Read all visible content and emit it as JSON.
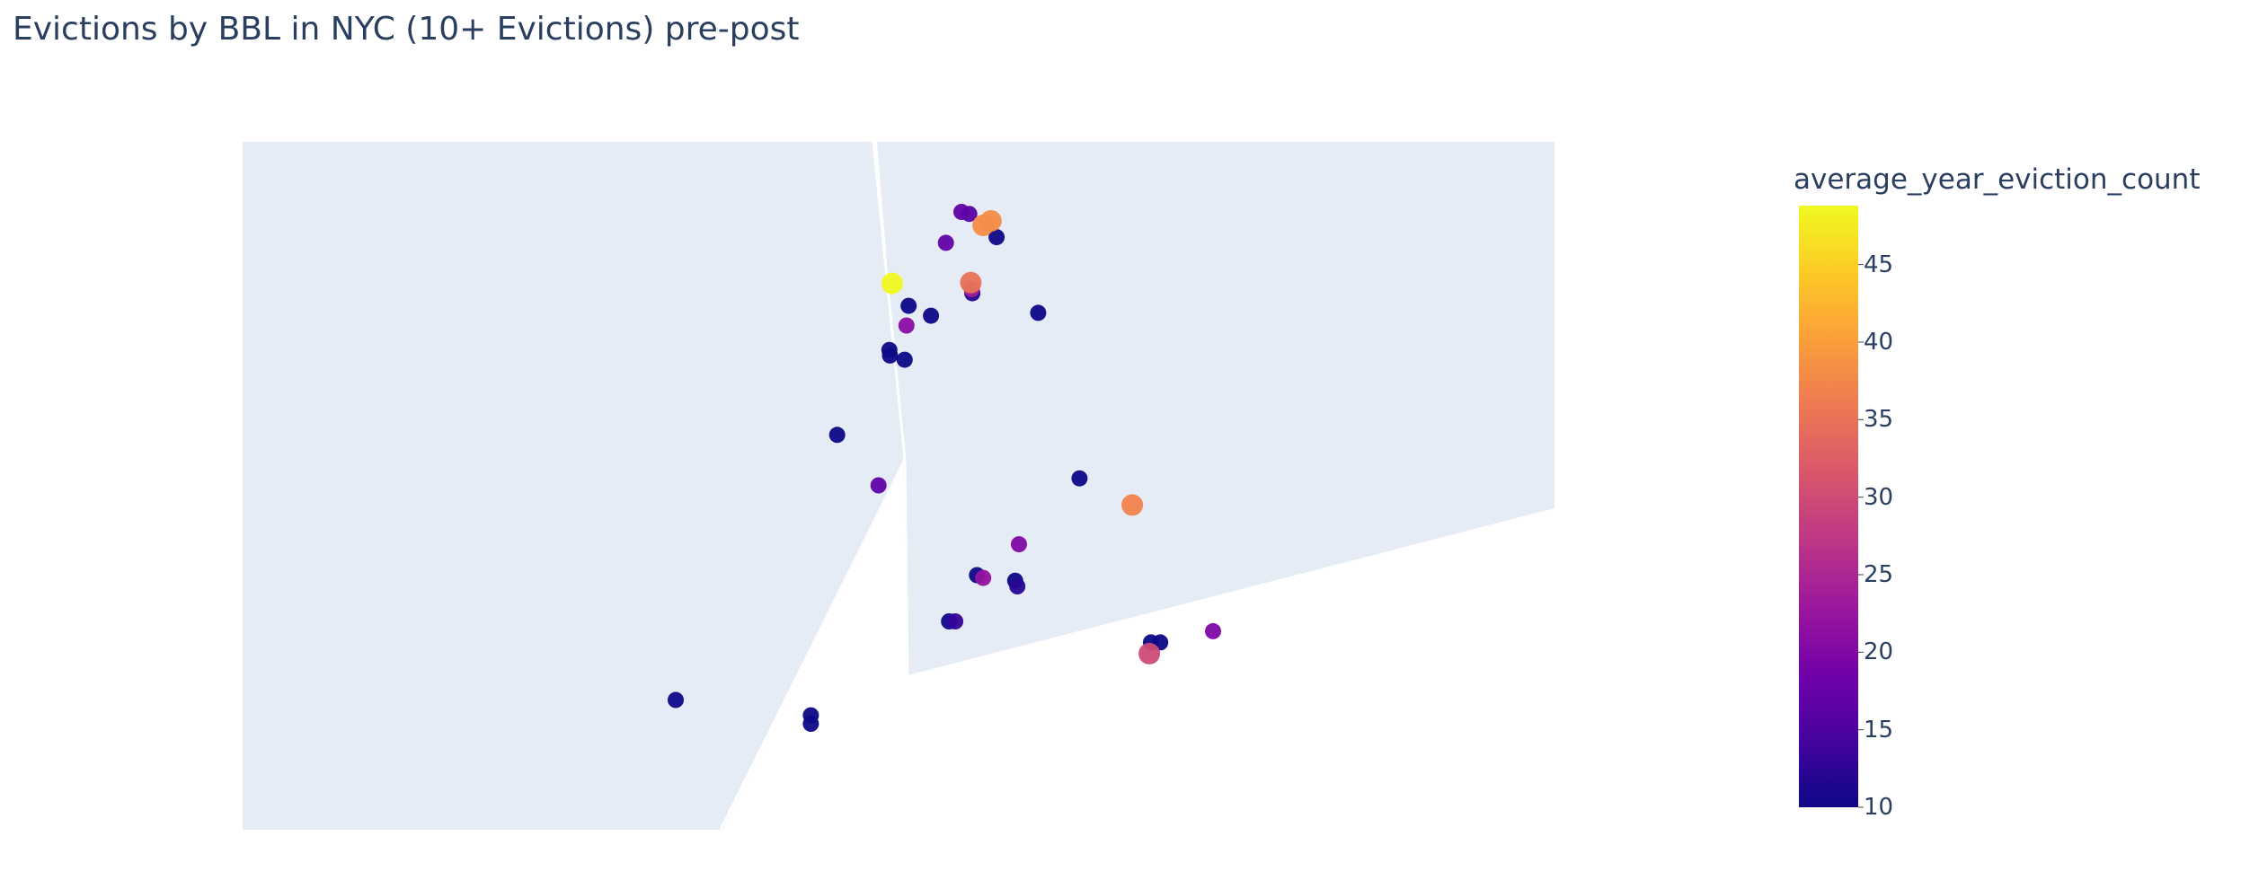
{
  "title": "Evictions by BBL in NYC (10+ Evictions) pre-post",
  "colorbar": {
    "title": "average_year_eviction_count",
    "min": 10,
    "max": 48.8,
    "ticks": [
      10,
      15,
      20,
      25,
      30,
      35,
      40,
      45
    ],
    "colorscale": [
      "#0d0887",
      "#46039f",
      "#7201a8",
      "#9c179e",
      "#bd3786",
      "#d8576b",
      "#ed7953",
      "#fb9f3a",
      "#fdca26",
      "#f0f921"
    ]
  },
  "chart_data": {
    "type": "scatter",
    "marker_color_field": "average_year_eviction_count",
    "land_color": "#e5ecf6",
    "points": [
      {
        "value": 17,
        "lon": -73.9435,
        "lat": 40.824
      },
      {
        "value": 16,
        "lon": -73.941,
        "lat": 40.8233
      },
      {
        "value": 38,
        "lon": -73.9365,
        "lat": 40.8192
      },
      {
        "value": 38,
        "lon": -73.934,
        "lat": 40.8208
      },
      {
        "value": 10,
        "lon": -73.9322,
        "lat": 40.815
      },
      {
        "value": 17,
        "lon": -73.9485,
        "lat": 40.813
      },
      {
        "value": 48.8,
        "lon": -73.9658,
        "lat": 40.7985
      },
      {
        "value": 35,
        "lon": -73.9405,
        "lat": 40.7988
      },
      {
        "value": 24,
        "lon": -73.9402,
        "lat": 40.7965
      },
      {
        "value": 12,
        "lon": -73.94,
        "lat": 40.795
      },
      {
        "value": 10,
        "lon": -73.9605,
        "lat": 40.7905
      },
      {
        "value": 10,
        "lon": -73.9533,
        "lat": 40.787
      },
      {
        "value": 21,
        "lon": -73.9612,
        "lat": 40.7835
      },
      {
        "value": 10,
        "lon": -73.9188,
        "lat": 40.788
      },
      {
        "value": 10,
        "lon": -73.9667,
        "lat": 40.7748
      },
      {
        "value": 10,
        "lon": -73.9665,
        "lat": 40.7728
      },
      {
        "value": 10,
        "lon": -73.9618,
        "lat": 40.7713
      },
      {
        "value": 10,
        "lon": -73.9835,
        "lat": 40.7445
      },
      {
        "value": 17,
        "lon": -73.9702,
        "lat": 40.7265
      },
      {
        "value": 10,
        "lon": -73.9055,
        "lat": 40.729
      },
      {
        "value": 37,
        "lon": -73.8885,
        "lat": 40.7195
      },
      {
        "value": 20,
        "lon": -73.925,
        "lat": 40.7055
      },
      {
        "value": 10,
        "lon": -73.9385,
        "lat": 40.6945
      },
      {
        "value": 22,
        "lon": -73.9365,
        "lat": 40.6935
      },
      {
        "value": 10,
        "lon": -73.9262,
        "lat": 40.6925
      },
      {
        "value": 12,
        "lon": -73.9255,
        "lat": 40.6905
      },
      {
        "value": 10,
        "lon": -73.9475,
        "lat": 40.678
      },
      {
        "value": 13,
        "lon": -73.9455,
        "lat": 40.678
      },
      {
        "value": 10,
        "lon": -73.8825,
        "lat": 40.6705
      },
      {
        "value": 10,
        "lon": -73.8795,
        "lat": 40.6705
      },
      {
        "value": 30,
        "lon": -73.883,
        "lat": 40.6665
      },
      {
        "value": 20,
        "lon": -73.8625,
        "lat": 40.6745
      },
      {
        "value": 10,
        "lon": -74.0355,
        "lat": 40.65
      },
      {
        "value": 10,
        "lon": -73.992,
        "lat": 40.6445
      },
      {
        "value": 10,
        "lon": -73.992,
        "lat": 40.6415
      }
    ]
  }
}
